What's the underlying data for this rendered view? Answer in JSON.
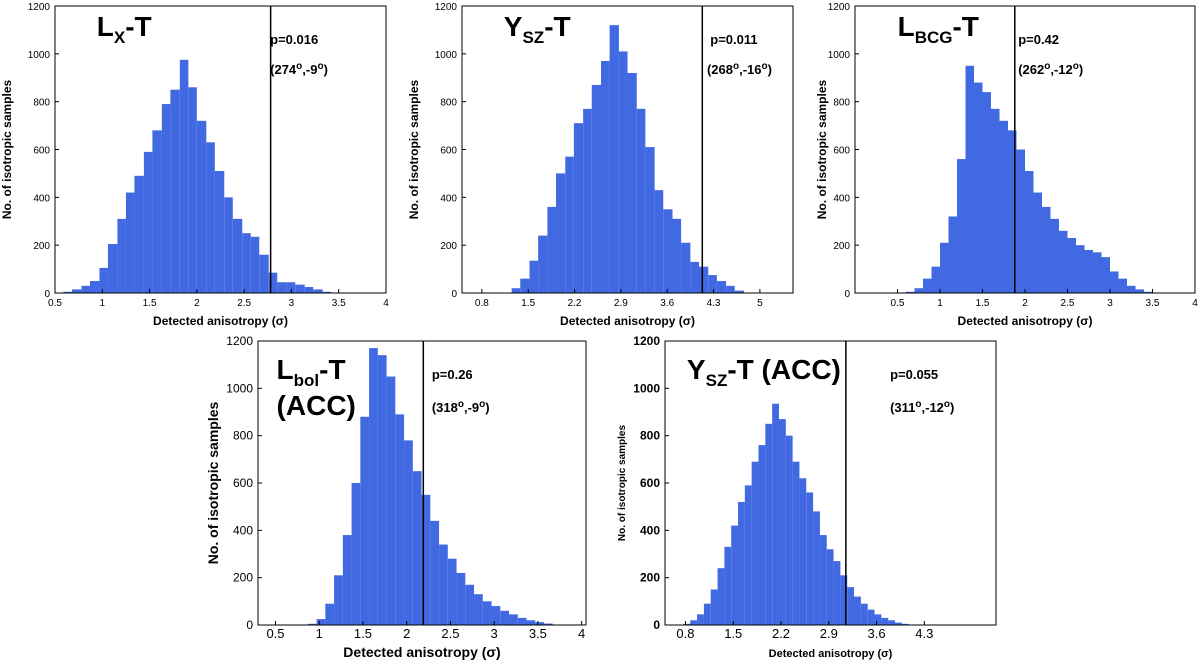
{
  "chart_data": [
    {
      "type": "bar",
      "title_main": "L",
      "title_sub": "X",
      "title_tail": "-T",
      "title_line2": "",
      "pvalue": "p=0.016",
      "dir_lon": "274",
      "dir_lat": "-9",
      "xlabel": "Detected anisotropy",
      "xlabel_unit": "σ",
      "ylabel": "No. of isotropic samples",
      "xlim": [
        0.5,
        4.0
      ],
      "ylim": [
        0,
        1200
      ],
      "xticks": [
        "0.5",
        "1",
        "1.5",
        "2",
        "2.5",
        "3",
        "3.5",
        "4"
      ],
      "yticks": [
        "0",
        "200",
        "400",
        "600",
        "800",
        "1000",
        "1200"
      ],
      "observed": 2.78,
      "bins": [
        {
          "x0": 0.59,
          "x1": 0.68,
          "y": 5
        },
        {
          "x0": 0.68,
          "x1": 0.78,
          "y": 15
        },
        {
          "x0": 0.78,
          "x1": 0.87,
          "y": 30
        },
        {
          "x0": 0.87,
          "x1": 0.97,
          "y": 50
        },
        {
          "x0": 0.97,
          "x1": 1.06,
          "y": 105
        },
        {
          "x0": 1.06,
          "x1": 1.16,
          "y": 205
        },
        {
          "x0": 1.16,
          "x1": 1.25,
          "y": 310
        },
        {
          "x0": 1.25,
          "x1": 1.34,
          "y": 420
        },
        {
          "x0": 1.34,
          "x1": 1.44,
          "y": 490
        },
        {
          "x0": 1.44,
          "x1": 1.53,
          "y": 590
        },
        {
          "x0": 1.53,
          "x1": 1.63,
          "y": 680
        },
        {
          "x0": 1.63,
          "x1": 1.72,
          "y": 790
        },
        {
          "x0": 1.72,
          "x1": 1.82,
          "y": 850
        },
        {
          "x0": 1.82,
          "x1": 1.91,
          "y": 975
        },
        {
          "x0": 1.91,
          "x1": 2.0,
          "y": 860
        },
        {
          "x0": 2.0,
          "x1": 2.1,
          "y": 720
        },
        {
          "x0": 2.1,
          "x1": 2.19,
          "y": 630
        },
        {
          "x0": 2.19,
          "x1": 2.29,
          "y": 510
        },
        {
          "x0": 2.29,
          "x1": 2.38,
          "y": 400
        },
        {
          "x0": 2.38,
          "x1": 2.48,
          "y": 310
        },
        {
          "x0": 2.48,
          "x1": 2.57,
          "y": 250
        },
        {
          "x0": 2.57,
          "x1": 2.66,
          "y": 235
        },
        {
          "x0": 2.66,
          "x1": 2.76,
          "y": 160
        },
        {
          "x0": 2.76,
          "x1": 2.85,
          "y": 85
        },
        {
          "x0": 2.85,
          "x1": 2.95,
          "y": 45
        },
        {
          "x0": 2.95,
          "x1": 3.04,
          "y": 45
        },
        {
          "x0": 3.04,
          "x1": 3.14,
          "y": 35
        },
        {
          "x0": 3.14,
          "x1": 3.23,
          "y": 25
        },
        {
          "x0": 3.23,
          "x1": 3.33,
          "y": 15
        },
        {
          "x0": 3.33,
          "x1": 3.42,
          "y": 5
        }
      ]
    },
    {
      "type": "bar",
      "title_main": "Y",
      "title_sub": "SZ",
      "title_tail": "-T",
      "title_line2": "",
      "pvalue": "p=0.011",
      "dir_lon": "268",
      "dir_lat": "-16",
      "xlabel": "Detected anisotropy",
      "xlabel_unit": "σ",
      "ylabel": "No. of isotropic samples",
      "xlim": [
        0.5,
        5.5
      ],
      "ylim": [
        0,
        1200
      ],
      "xticks": [
        "0.8",
        "1.5",
        "2.2",
        "2.9",
        "3.6",
        "4.3",
        "5"
      ],
      "xtick_vals": [
        0.8,
        1.5,
        2.2,
        2.9,
        3.6,
        4.3,
        5.0
      ],
      "yticks": [
        "0",
        "200",
        "400",
        "600",
        "800",
        "1000",
        "1200"
      ],
      "observed": 4.13,
      "bins": [
        {
          "x0": 1.25,
          "x1": 1.38,
          "y": 20
        },
        {
          "x0": 1.38,
          "x1": 1.52,
          "y": 60
        },
        {
          "x0": 1.52,
          "x1": 1.65,
          "y": 135
        },
        {
          "x0": 1.65,
          "x1": 1.79,
          "y": 240
        },
        {
          "x0": 1.79,
          "x1": 1.92,
          "y": 360
        },
        {
          "x0": 1.92,
          "x1": 2.06,
          "y": 500
        },
        {
          "x0": 2.06,
          "x1": 2.19,
          "y": 570
        },
        {
          "x0": 2.19,
          "x1": 2.33,
          "y": 710
        },
        {
          "x0": 2.33,
          "x1": 2.46,
          "y": 770
        },
        {
          "x0": 2.46,
          "x1": 2.6,
          "y": 870
        },
        {
          "x0": 2.6,
          "x1": 2.73,
          "y": 970
        },
        {
          "x0": 2.73,
          "x1": 2.87,
          "y": 1120
        },
        {
          "x0": 2.87,
          "x1": 3.0,
          "y": 1010
        },
        {
          "x0": 3.0,
          "x1": 3.14,
          "y": 920
        },
        {
          "x0": 3.14,
          "x1": 3.27,
          "y": 770
        },
        {
          "x0": 3.27,
          "x1": 3.41,
          "y": 610
        },
        {
          "x0": 3.41,
          "x1": 3.54,
          "y": 430
        },
        {
          "x0": 3.54,
          "x1": 3.68,
          "y": 350
        },
        {
          "x0": 3.68,
          "x1": 3.81,
          "y": 310
        },
        {
          "x0": 3.81,
          "x1": 3.95,
          "y": 210
        },
        {
          "x0": 3.95,
          "x1": 4.08,
          "y": 130
        },
        {
          "x0": 4.08,
          "x1": 4.22,
          "y": 110
        },
        {
          "x0": 4.22,
          "x1": 4.35,
          "y": 75
        },
        {
          "x0": 4.35,
          "x1": 4.49,
          "y": 50
        },
        {
          "x0": 4.49,
          "x1": 4.62,
          "y": 30
        },
        {
          "x0": 4.62,
          "x1": 4.76,
          "y": 10
        }
      ]
    },
    {
      "type": "bar",
      "title_main": "L",
      "title_sub": "BCG",
      "title_tail": "-T",
      "title_line2": "",
      "pvalue": "p=0.42",
      "dir_lon": "262",
      "dir_lat": "-12",
      "xlabel": "Detected anisotropy",
      "xlabel_unit": "σ",
      "ylabel": "No. of isotropic samples",
      "xlim": [
        0.0,
        4.0
      ],
      "ylim": [
        0,
        1200
      ],
      "xticks": [
        "0.5",
        "1",
        "1.5",
        "2",
        "2.5",
        "3",
        "3.5",
        "4"
      ],
      "xtick_vals": [
        0.5,
        1.0,
        1.5,
        2.0,
        2.5,
        3.0,
        3.5,
        4.0
      ],
      "yticks": [
        "0",
        "200",
        "400",
        "600",
        "800",
        "1000",
        "1200"
      ],
      "observed": 1.88,
      "bins": [
        {
          "x0": 0.6,
          "x1": 0.7,
          "y": 5
        },
        {
          "x0": 0.7,
          "x1": 0.8,
          "y": 20
        },
        {
          "x0": 0.8,
          "x1": 0.9,
          "y": 60
        },
        {
          "x0": 0.9,
          "x1": 1.0,
          "y": 110
        },
        {
          "x0": 1.0,
          "x1": 1.1,
          "y": 210
        },
        {
          "x0": 1.1,
          "x1": 1.2,
          "y": 320
        },
        {
          "x0": 1.2,
          "x1": 1.3,
          "y": 560
        },
        {
          "x0": 1.3,
          "x1": 1.4,
          "y": 950
        },
        {
          "x0": 1.4,
          "x1": 1.5,
          "y": 880
        },
        {
          "x0": 1.5,
          "x1": 1.6,
          "y": 840
        },
        {
          "x0": 1.6,
          "x1": 1.7,
          "y": 770
        },
        {
          "x0": 1.7,
          "x1": 1.8,
          "y": 720
        },
        {
          "x0": 1.8,
          "x1": 1.9,
          "y": 680
        },
        {
          "x0": 1.9,
          "x1": 2.0,
          "y": 600
        },
        {
          "x0": 2.0,
          "x1": 2.1,
          "y": 510
        },
        {
          "x0": 2.1,
          "x1": 2.2,
          "y": 420
        },
        {
          "x0": 2.2,
          "x1": 2.3,
          "y": 360
        },
        {
          "x0": 2.3,
          "x1": 2.4,
          "y": 310
        },
        {
          "x0": 2.4,
          "x1": 2.5,
          "y": 260
        },
        {
          "x0": 2.5,
          "x1": 2.6,
          "y": 230
        },
        {
          "x0": 2.6,
          "x1": 2.7,
          "y": 200
        },
        {
          "x0": 2.7,
          "x1": 2.8,
          "y": 180
        },
        {
          "x0": 2.8,
          "x1": 2.9,
          "y": 170
        },
        {
          "x0": 2.9,
          "x1": 3.0,
          "y": 150
        },
        {
          "x0": 3.0,
          "x1": 3.1,
          "y": 90
        },
        {
          "x0": 3.1,
          "x1": 3.2,
          "y": 60
        },
        {
          "x0": 3.2,
          "x1": 3.3,
          "y": 30
        },
        {
          "x0": 3.3,
          "x1": 3.4,
          "y": 15
        },
        {
          "x0": 3.4,
          "x1": 3.5,
          "y": 5
        }
      ]
    },
    {
      "type": "bar",
      "title_main": "L",
      "title_sub": "bol",
      "title_tail": "-T",
      "title_line2": "(ACC)",
      "pvalue": "p=0.26",
      "dir_lon": "318",
      "dir_lat": "-9",
      "xlabel": "Detected anisotropy",
      "xlabel_unit": "σ",
      "ylabel": "No. of isotropic samples",
      "xlim": [
        0.3,
        4.05
      ],
      "ylim": [
        0,
        1200
      ],
      "xticks": [
        "0.5",
        "1",
        "1.5",
        "2",
        "2.5",
        "3",
        "3.5",
        "4"
      ],
      "xtick_vals": [
        0.5,
        1.0,
        1.5,
        2.0,
        2.5,
        3.0,
        3.5,
        4.0
      ],
      "yticks": [
        "0",
        "200",
        "400",
        "600",
        "800",
        "1000",
        "1200"
      ],
      "observed": 2.19,
      "bins": [
        {
          "x0": 0.87,
          "x1": 0.97,
          "y": 5
        },
        {
          "x0": 0.97,
          "x1": 1.07,
          "y": 25
        },
        {
          "x0": 1.07,
          "x1": 1.17,
          "y": 90
        },
        {
          "x0": 1.17,
          "x1": 1.27,
          "y": 210
        },
        {
          "x0": 1.27,
          "x1": 1.37,
          "y": 380
        },
        {
          "x0": 1.37,
          "x1": 1.47,
          "y": 600
        },
        {
          "x0": 1.47,
          "x1": 1.57,
          "y": 880
        },
        {
          "x0": 1.57,
          "x1": 1.67,
          "y": 1170
        },
        {
          "x0": 1.67,
          "x1": 1.77,
          "y": 1140
        },
        {
          "x0": 1.77,
          "x1": 1.87,
          "y": 1050
        },
        {
          "x0": 1.87,
          "x1": 1.97,
          "y": 890
        },
        {
          "x0": 1.97,
          "x1": 2.07,
          "y": 780
        },
        {
          "x0": 2.07,
          "x1": 2.17,
          "y": 650
        },
        {
          "x0": 2.17,
          "x1": 2.27,
          "y": 550
        },
        {
          "x0": 2.27,
          "x1": 2.37,
          "y": 440
        },
        {
          "x0": 2.37,
          "x1": 2.47,
          "y": 340
        },
        {
          "x0": 2.47,
          "x1": 2.57,
          "y": 280
        },
        {
          "x0": 2.57,
          "x1": 2.67,
          "y": 220
        },
        {
          "x0": 2.67,
          "x1": 2.77,
          "y": 170
        },
        {
          "x0": 2.77,
          "x1": 2.87,
          "y": 130
        },
        {
          "x0": 2.87,
          "x1": 2.97,
          "y": 100
        },
        {
          "x0": 2.97,
          "x1": 3.07,
          "y": 80
        },
        {
          "x0": 3.07,
          "x1": 3.17,
          "y": 60
        },
        {
          "x0": 3.17,
          "x1": 3.27,
          "y": 45
        },
        {
          "x0": 3.27,
          "x1": 3.37,
          "y": 30
        },
        {
          "x0": 3.37,
          "x1": 3.47,
          "y": 20
        },
        {
          "x0": 3.47,
          "x1": 3.57,
          "y": 12
        },
        {
          "x0": 3.57,
          "x1": 3.67,
          "y": 6
        }
      ]
    },
    {
      "type": "bar",
      "title_main": "Y",
      "title_sub": "SZ",
      "title_tail": "-T (ACC)",
      "title_line2": "",
      "pvalue": "p=0.055",
      "dir_lon": "311",
      "dir_lat": "-12",
      "xlabel": "Detected anisotropy",
      "xlabel_unit": "σ",
      "ylabel": "No. of isotropic samples",
      "xlim": [
        0.5,
        5.35
      ],
      "ylim": [
        0,
        1200
      ],
      "xticks": [
        "0.8",
        "1.5",
        "2.2",
        "2.9",
        "3.6",
        "4.3"
      ],
      "xtick_vals": [
        0.8,
        1.5,
        2.2,
        2.9,
        3.6,
        4.3
      ],
      "yticks": [
        "0",
        "200",
        "400",
        "600",
        "800",
        "1000",
        "1200"
      ],
      "observed": 3.15,
      "bins": [
        {
          "x0": 0.77,
          "x1": 0.87,
          "y": 5
        },
        {
          "x0": 0.87,
          "x1": 0.97,
          "y": 20
        },
        {
          "x0": 0.97,
          "x1": 1.07,
          "y": 45
        },
        {
          "x0": 1.07,
          "x1": 1.17,
          "y": 90
        },
        {
          "x0": 1.17,
          "x1": 1.27,
          "y": 150
        },
        {
          "x0": 1.27,
          "x1": 1.37,
          "y": 240
        },
        {
          "x0": 1.37,
          "x1": 1.47,
          "y": 330
        },
        {
          "x0": 1.47,
          "x1": 1.57,
          "y": 420
        },
        {
          "x0": 1.57,
          "x1": 1.67,
          "y": 520
        },
        {
          "x0": 1.67,
          "x1": 1.77,
          "y": 590
        },
        {
          "x0": 1.77,
          "x1": 1.87,
          "y": 690
        },
        {
          "x0": 1.87,
          "x1": 1.97,
          "y": 760
        },
        {
          "x0": 1.97,
          "x1": 2.07,
          "y": 850
        },
        {
          "x0": 2.07,
          "x1": 2.17,
          "y": 935
        },
        {
          "x0": 2.17,
          "x1": 2.27,
          "y": 870
        },
        {
          "x0": 2.27,
          "x1": 2.37,
          "y": 800
        },
        {
          "x0": 2.37,
          "x1": 2.47,
          "y": 690
        },
        {
          "x0": 2.47,
          "x1": 2.57,
          "y": 620
        },
        {
          "x0": 2.57,
          "x1": 2.67,
          "y": 560
        },
        {
          "x0": 2.67,
          "x1": 2.77,
          "y": 480
        },
        {
          "x0": 2.77,
          "x1": 2.87,
          "y": 380
        },
        {
          "x0": 2.87,
          "x1": 2.97,
          "y": 320
        },
        {
          "x0": 2.97,
          "x1": 3.07,
          "y": 270
        },
        {
          "x0": 3.07,
          "x1": 3.17,
          "y": 210
        },
        {
          "x0": 3.17,
          "x1": 3.27,
          "y": 160
        },
        {
          "x0": 3.27,
          "x1": 3.37,
          "y": 120
        },
        {
          "x0": 3.37,
          "x1": 3.47,
          "y": 90
        },
        {
          "x0": 3.47,
          "x1": 3.57,
          "y": 65
        },
        {
          "x0": 3.57,
          "x1": 3.67,
          "y": 45
        },
        {
          "x0": 3.67,
          "x1": 3.77,
          "y": 30
        },
        {
          "x0": 3.77,
          "x1": 3.87,
          "y": 20
        },
        {
          "x0": 3.87,
          "x1": 3.97,
          "y": 10
        },
        {
          "x0": 3.97,
          "x1": 4.07,
          "y": 5
        }
      ]
    }
  ],
  "colors": {
    "bar": "#4169e1",
    "axis": "#000000",
    "marker": "#000000"
  }
}
